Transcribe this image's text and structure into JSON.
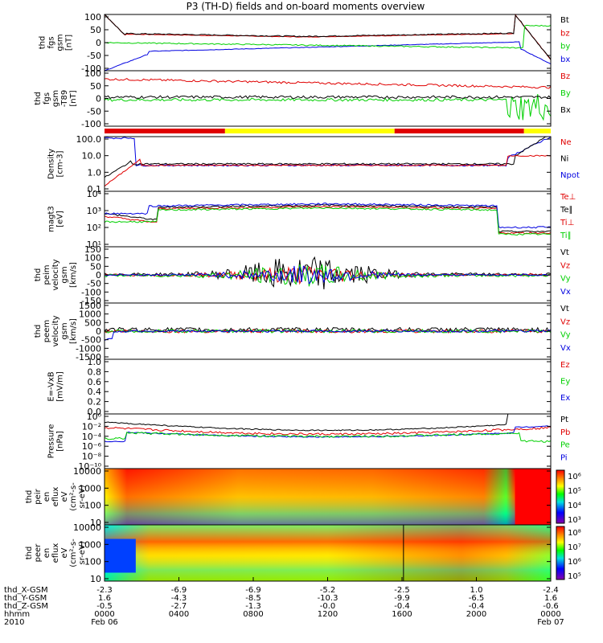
{
  "title": "P3 (TH-D) fields and on-board moments overview",
  "colors": {
    "black": "#000000",
    "red": "#e00000",
    "green": "#00d000",
    "blue": "#0000e0",
    "yellow": "#ffff00"
  },
  "panels": [
    {
      "id": "fgs",
      "ylabel": [
        "thd",
        "fgs",
        "gsm",
        "[nT]"
      ],
      "ticks": [
        "100",
        "50",
        "0",
        "-50",
        "-100"
      ],
      "legend": [
        {
          "t": "Bt",
          "c": "black"
        },
        {
          "t": "bz",
          "c": "red"
        },
        {
          "t": "by",
          "c": "green"
        },
        {
          "t": "bx",
          "c": "blue"
        }
      ]
    },
    {
      "id": "fgs2",
      "ylabel": [
        "thd",
        "fgs",
        "gsm",
        "-T89",
        "[nT]"
      ],
      "ticks": [
        "100",
        "50",
        "0",
        "-50",
        "-100"
      ],
      "legend": [
        {
          "t": "Bz",
          "c": "red"
        },
        {
          "t": "By",
          "c": "green"
        },
        {
          "t": "Bx",
          "c": "black"
        }
      ]
    },
    {
      "id": "density",
      "ylabel": [
        "Density",
        "[cm-3]"
      ],
      "ticks": [
        "100.0",
        "10.0",
        "1.0",
        "0.1"
      ],
      "legend": [
        {
          "t": "Ne",
          "c": "red"
        },
        {
          "t": "Ni",
          "c": "black"
        },
        {
          "t": "Npot",
          "c": "blue"
        }
      ]
    },
    {
      "id": "temp",
      "ylabel": [
        "magt3",
        "[eV]"
      ],
      "ticks": [
        "10⁴",
        "10³",
        "10²",
        "10¹"
      ],
      "legend": [
        {
          "t": "Te⊥",
          "c": "red"
        },
        {
          "t": "Te∥",
          "c": "black"
        },
        {
          "t": "Ti⊥",
          "c": "red"
        },
        {
          "t": "Ti∥",
          "c": "green"
        }
      ]
    },
    {
      "id": "vi",
      "ylabel": [
        "thd",
        "peim",
        "velocity",
        "gsm",
        "[km/s]"
      ],
      "ticks": [
        "150",
        "100",
        "50",
        "0",
        "-50",
        "-100",
        "-150"
      ],
      "legend": [
        {
          "t": "Vt",
          "c": "black"
        },
        {
          "t": "Vz",
          "c": "red"
        },
        {
          "t": "Vy",
          "c": "green"
        },
        {
          "t": "Vx",
          "c": "blue"
        }
      ]
    },
    {
      "id": "ve",
      "ylabel": [
        "thd",
        "peem",
        "velocity",
        "gsm",
        "[km/s]"
      ],
      "ticks": [
        "1500",
        "1000",
        "500",
        "0",
        "-500",
        "-1000",
        "-1500"
      ],
      "legend": [
        {
          "t": "Vt",
          "c": "black"
        },
        {
          "t": "Vz",
          "c": "red"
        },
        {
          "t": "Vy",
          "c": "green"
        },
        {
          "t": "Vx",
          "c": "blue"
        }
      ]
    },
    {
      "id": "e",
      "ylabel": [
        "E=-VxB",
        "[mV/m]"
      ],
      "ticks": [
        "1.0",
        "0.8",
        "0.6",
        "0.4",
        "0.2",
        "0.0"
      ],
      "legend": [
        {
          "t": "Ez",
          "c": "red"
        },
        {
          "t": "Ey",
          "c": "green"
        },
        {
          "t": "Ex",
          "c": "blue"
        }
      ]
    },
    {
      "id": "pressure",
      "ylabel": [
        "Pressure",
        "[nPa]"
      ],
      "ticks": [
        "10⁰",
        "10⁻²",
        "10⁻⁴",
        "10⁻⁶",
        "10⁻⁸",
        "10⁻¹⁰"
      ],
      "legend": [
        {
          "t": "Pt",
          "c": "black"
        },
        {
          "t": "Pb",
          "c": "red"
        },
        {
          "t": "Pe",
          "c": "green"
        },
        {
          "t": "Pi",
          "c": "blue"
        }
      ]
    },
    {
      "id": "peir",
      "ylabel": [
        "thd",
        "peir",
        "en",
        "eflux",
        "eV",
        "(cm²-s-",
        "sr-eV)"
      ],
      "ticks": [
        "10000",
        "1000",
        "100",
        "10"
      ],
      "colorbar": [
        "10⁶",
        "10⁵",
        "10⁴",
        "10³"
      ]
    },
    {
      "id": "peer",
      "ylabel": [
        "thd",
        "peer",
        "en",
        "eflux",
        "eV",
        "(cm²-s-",
        "sr-eV)"
      ],
      "ticks": [
        "10000",
        "1000",
        "100",
        "10"
      ],
      "colorbar": [
        "10⁸",
        "10⁷",
        "10⁶",
        "10⁵"
      ]
    }
  ],
  "mode_bar": [
    {
      "from": 0.0,
      "to": 0.27,
      "color": "red"
    },
    {
      "from": 0.27,
      "to": 0.65,
      "color": "yellow"
    },
    {
      "from": 0.65,
      "to": 0.94,
      "color": "red"
    },
    {
      "from": 0.94,
      "to": 1.0,
      "color": "yellow"
    }
  ],
  "xaxis": {
    "row_labels": [
      "thd_X-GSM",
      "thd_Y-GSM",
      "thd_Z-GSM",
      "hhmm",
      "2010"
    ],
    "columns": [
      [
        "-2.3",
        "1.6",
        "-0.5",
        "0000",
        "Feb 06"
      ],
      [
        "-6.9",
        "-4.3",
        "-2.7",
        "0400",
        ""
      ],
      [
        "-6.9",
        "-8.5",
        "-1.3",
        "0800",
        ""
      ],
      [
        "-5.2",
        "-10.3",
        "-0.0",
        "1200",
        ""
      ],
      [
        "-2.5",
        "-9.9",
        "-0.4",
        "1600",
        ""
      ],
      [
        "1.0",
        "-6.5",
        "-0.4",
        "2000",
        ""
      ],
      [
        "-2.4",
        "1.6",
        "-0.6",
        "0000",
        "Feb 07"
      ]
    ]
  },
  "chart_data": [
    {
      "type": "line",
      "title": "P3 (TH-D) fields and on-board moments overview",
      "ylabel": "thd fgs gsm [nT]",
      "ylim": [
        -100,
        100
      ],
      "x": [
        "0000",
        "0400",
        "0800",
        "1200",
        "1600",
        "2000",
        "0000"
      ],
      "series": [
        {
          "name": "Bt",
          "values": [
            100,
            25,
            15,
            15,
            20,
            40,
            100
          ]
        },
        {
          "name": "bz",
          "values": [
            100,
            25,
            15,
            15,
            20,
            40,
            -100
          ]
        },
        {
          "name": "by",
          "values": [
            0,
            0,
            -5,
            -10,
            -20,
            -40,
            80
          ]
        },
        {
          "name": "bx",
          "values": [
            -100,
            -30,
            -10,
            -5,
            0,
            5,
            -90
          ]
        }
      ]
    },
    {
      "type": "line",
      "ylabel": "Density [cm-3]",
      "ylim": [
        0.1,
        100
      ],
      "x": [
        "0000",
        "0400",
        "0800",
        "1200",
        "1600",
        "2000",
        "0000"
      ],
      "series": [
        {
          "name": "Ne",
          "values": [
            0.1,
            0.9,
            0.7,
            0.5,
            0.5,
            0.9,
            3
          ]
        },
        {
          "name": "Ni",
          "values": [
            1.5,
            0.8,
            0.6,
            0.5,
            0.5,
            1.0,
            40
          ]
        },
        {
          "name": "Npot",
          "values": [
            100,
            0.8,
            0.5,
            0.5,
            0.4,
            0.9,
            30
          ]
        }
      ]
    }
  ]
}
